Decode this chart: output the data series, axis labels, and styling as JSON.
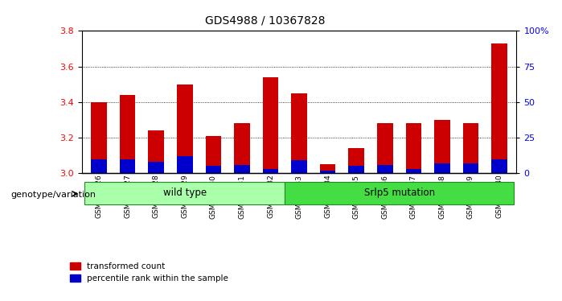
{
  "title": "GDS4988 / 10367828",
  "samples": [
    "GSM921326",
    "GSM921327",
    "GSM921328",
    "GSM921329",
    "GSM921330",
    "GSM921331",
    "GSM921332",
    "GSM921333",
    "GSM921334",
    "GSM921335",
    "GSM921336",
    "GSM921337",
    "GSM921338",
    "GSM921339",
    "GSM921340"
  ],
  "red_values": [
    3.4,
    3.44,
    3.24,
    3.5,
    3.21,
    3.28,
    3.54,
    3.45,
    3.05,
    3.14,
    3.28,
    3.28,
    3.3,
    3.28,
    3.73
  ],
  "blue_percentiles": [
    10,
    10,
    8,
    12,
    5,
    6,
    3,
    9,
    2,
    5,
    6,
    3,
    7,
    7,
    10
  ],
  "ymin": 3.0,
  "ymax": 3.8,
  "yticks": [
    3.0,
    3.2,
    3.4,
    3.6,
    3.8
  ],
  "right_yticks": [
    0,
    25,
    50,
    75,
    100
  ],
  "grid_vals": [
    3.2,
    3.4,
    3.6
  ],
  "wild_type_count": 7,
  "group_labels": [
    "wild type",
    "Srlp5 mutation"
  ],
  "group_color_wt": "#aaffaa",
  "group_color_sr": "#44dd44",
  "bar_color_red": "#cc0000",
  "bar_color_blue": "#0000cc",
  "bar_width": 0.55,
  "legend_labels": [
    "transformed count",
    "percentile rank within the sample"
  ],
  "genotype_label": "genotype/variation"
}
